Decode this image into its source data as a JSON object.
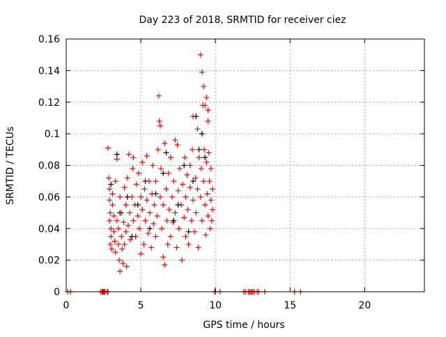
{
  "chart_data": {
    "type": "scatter",
    "title": "Day 223 of 2018, SRMTID for receiver ciez",
    "xlabel": "GPS time / hours",
    "ylabel": "SRMTID / TECUs",
    "xlim": [
      0,
      24
    ],
    "ylim": [
      0,
      0.16
    ],
    "xticks": [
      0,
      5,
      10,
      15,
      20
    ],
    "xtick_labels": [
      "0",
      "5",
      "10",
      "15",
      "20"
    ],
    "yticks": [
      0,
      0.02,
      0.04,
      0.06,
      0.08,
      0.1,
      0.12,
      0.14,
      0.16
    ],
    "ytick_labels": [
      "0",
      "0.02",
      "0.04",
      "0.06",
      "0.08",
      "0.1",
      "0.12",
      "0.14",
      "0.16"
    ],
    "grid": true,
    "legend": "none",
    "series": [
      {
        "name": "red",
        "color": "#ff0000",
        "marker": "plus",
        "points": [
          [
            2.85,
            0.072
          ],
          [
            2.9,
            0.065
          ],
          [
            2.9,
            0.058
          ],
          [
            2.95,
            0.05
          ],
          [
            2.9,
            0.045
          ],
          [
            3.0,
            0.04
          ],
          [
            3.0,
            0.035
          ],
          [
            2.95,
            0.03
          ],
          [
            3.05,
            0.027
          ],
          [
            3.1,
            0.055
          ],
          [
            3.1,
            0.062
          ],
          [
            3.2,
            0.048
          ],
          [
            3.2,
            0.038
          ],
          [
            3.25,
            0.032
          ],
          [
            3.3,
            0.025
          ],
          [
            3.3,
            0.07
          ],
          [
            3.4,
            0.084
          ],
          [
            3.4,
            0.045
          ],
          [
            3.5,
            0.04
          ],
          [
            3.5,
            0.03
          ],
          [
            3.55,
            0.02
          ],
          [
            3.6,
            0.013
          ],
          [
            3.6,
            0.06
          ],
          [
            3.7,
            0.035
          ],
          [
            3.7,
            0.05
          ],
          [
            3.75,
            0.027
          ],
          [
            3.8,
            0.018
          ],
          [
            3.85,
            0.044
          ],
          [
            3.9,
            0.066
          ],
          [
            3.9,
            0.03
          ],
          [
            4.0,
            0.038
          ],
          [
            4.0,
            0.055
          ],
          [
            4.05,
            0.016
          ],
          [
            4.1,
            0.072
          ],
          [
            4.15,
            0.042
          ],
          [
            4.2,
            0.087
          ],
          [
            4.25,
            0.05
          ],
          [
            4.3,
            0.033
          ],
          [
            4.4,
            0.06
          ],
          [
            4.45,
            0.078
          ],
          [
            4.5,
            0.045
          ],
          [
            4.5,
            0.085
          ],
          [
            4.6,
            0.055
          ],
          [
            4.65,
            0.035
          ],
          [
            4.7,
            0.068
          ],
          [
            4.8,
            0.048
          ],
          [
            4.85,
            0.075
          ],
          [
            4.9,
            0.04
          ],
          [
            5.0,
            0.06
          ],
          [
            5.0,
            0.024
          ],
          [
            5.1,
            0.082
          ],
          [
            5.1,
            0.052
          ],
          [
            5.2,
            0.03
          ],
          [
            5.25,
            0.065
          ],
          [
            5.3,
            0.045
          ],
          [
            5.4,
            0.086
          ],
          [
            5.4,
            0.058
          ],
          [
            5.5,
            0.037
          ],
          [
            5.55,
            0.07
          ],
          [
            5.6,
            0.05
          ],
          [
            5.7,
            0.028
          ],
          [
            5.75,
            0.062
          ],
          [
            5.8,
            0.08
          ],
          [
            5.85,
            0.043
          ],
          [
            5.9,
            0.055
          ],
          [
            6.0,
            0.035
          ],
          [
            6.0,
            0.07
          ],
          [
            6.1,
            0.048
          ],
          [
            6.15,
            0.09
          ],
          [
            6.2,
            0.124
          ],
          [
            6.25,
            0.108
          ],
          [
            6.3,
            0.105
          ],
          [
            6.3,
            0.06
          ],
          [
            6.35,
            0.078
          ],
          [
            6.4,
            0.04
          ],
          [
            6.5,
            0.022
          ],
          [
            6.5,
            0.055
          ],
          [
            6.6,
            0.094
          ],
          [
            6.6,
            0.017
          ],
          [
            6.7,
            0.065
          ],
          [
            6.75,
            0.045
          ],
          [
            6.8,
            0.03
          ],
          [
            6.85,
            0.075
          ],
          [
            6.9,
            0.052
          ],
          [
            7.0,
            0.085
          ],
          [
            7.0,
            0.035
          ],
          [
            7.1,
            0.06
          ],
          [
            7.15,
            0.044
          ],
          [
            7.2,
            0.07
          ],
          [
            7.3,
            0.096
          ],
          [
            7.3,
            0.05
          ],
          [
            7.4,
            0.028
          ],
          [
            7.45,
            0.093
          ],
          [
            7.5,
            0.064
          ],
          [
            7.55,
            0.04
          ],
          [
            7.6,
            0.078
          ],
          [
            7.7,
            0.055
          ],
          [
            7.75,
            0.02
          ],
          [
            7.8,
            0.068
          ],
          [
            7.9,
            0.047
          ],
          [
            7.95,
            0.085
          ],
          [
            8.0,
            0.035
          ],
          [
            8.0,
            0.06
          ],
          [
            8.1,
            0.074
          ],
          [
            8.15,
            0.052
          ],
          [
            8.2,
            0.03
          ],
          [
            8.3,
            0.08
          ],
          [
            8.3,
            0.066
          ],
          [
            8.4,
            0.045
          ],
          [
            8.45,
            0.09
          ],
          [
            8.5,
            0.111
          ],
          [
            8.5,
            0.058
          ],
          [
            8.6,
            0.038
          ],
          [
            8.65,
            0.072
          ],
          [
            8.7,
            0.05
          ],
          [
            8.8,
            0.103
          ],
          [
            8.8,
            0.065
          ],
          [
            8.85,
            0.028
          ],
          [
            8.9,
            0.085
          ],
          [
            9.0,
            0.15
          ],
          [
            9.0,
            0.06
          ],
          [
            9.05,
            0.078
          ],
          [
            9.1,
            0.139
          ],
          [
            9.1,
            0.045
          ],
          [
            9.15,
            0.118
          ],
          [
            9.2,
            0.13
          ],
          [
            9.2,
            0.07
          ],
          [
            9.25,
            0.09
          ],
          [
            9.3,
            0.118
          ],
          [
            9.3,
            0.055
          ],
          [
            9.35,
            0.036
          ],
          [
            9.4,
            0.123
          ],
          [
            9.4,
            0.082
          ],
          [
            9.45,
            0.062
          ],
          [
            9.5,
            0.115
          ],
          [
            9.5,
            0.108
          ],
          [
            9.5,
            0.048
          ],
          [
            9.55,
            0.088
          ],
          [
            9.6,
            0.07
          ],
          [
            9.65,
            0.04
          ],
          [
            9.7,
            0.058
          ],
          [
            9.7,
            0.078
          ],
          [
            9.75,
            0.045
          ],
          [
            9.8,
            0.065
          ],
          [
            9.8,
            0.052
          ],
          [
            2.8,
            0.091
          ],
          [
            0.1,
            0
          ],
          [
            0.3,
            0
          ],
          [
            2.3,
            0
          ],
          [
            2.4,
            0
          ],
          [
            2.45,
            0
          ],
          [
            2.5,
            0
          ],
          [
            2.55,
            0
          ],
          [
            2.6,
            0
          ],
          [
            2.75,
            0
          ],
          [
            2.8,
            0
          ],
          [
            9.95,
            0
          ],
          [
            10.0,
            0
          ],
          [
            10.3,
            0
          ],
          [
            11.9,
            0
          ],
          [
            12.0,
            0
          ],
          [
            12.2,
            0
          ],
          [
            12.3,
            0
          ],
          [
            12.4,
            0
          ],
          [
            12.5,
            0
          ],
          [
            12.6,
            0
          ],
          [
            12.8,
            0
          ],
          [
            12.9,
            0
          ],
          [
            13.3,
            0
          ],
          [
            15.3,
            0
          ],
          [
            15.7,
            0
          ]
        ]
      },
      {
        "name": "black",
        "color": "#000000",
        "marker": "plus",
        "points": [
          [
            3.4,
            0.087
          ],
          [
            3.0,
            0.068
          ],
          [
            4.1,
            0.06
          ],
          [
            4.8,
            0.055
          ],
          [
            5.3,
            0.07
          ],
          [
            6.0,
            0.062
          ],
          [
            6.7,
            0.088
          ],
          [
            7.2,
            0.045
          ],
          [
            7.9,
            0.08
          ],
          [
            8.5,
            0.07
          ],
          [
            8.7,
            0.111
          ],
          [
            8.9,
            0.09
          ],
          [
            9.1,
            0.1
          ],
          [
            3.6,
            0.05
          ],
          [
            5.6,
            0.04
          ],
          [
            7.5,
            0.055
          ],
          [
            8.2,
            0.038
          ],
          [
            9.3,
            0.085
          ],
          [
            4.4,
            0.035
          ],
          [
            6.5,
            0.075
          ]
        ]
      }
    ]
  }
}
